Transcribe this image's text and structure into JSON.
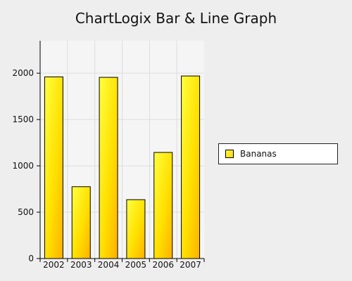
{
  "chart_data": {
    "type": "bar",
    "title": "ChartLogix Bar & Line Graph",
    "categories": [
      "2002",
      "2003",
      "2004",
      "2005",
      "2006",
      "2007"
    ],
    "series": [
      {
        "name": "Bananas",
        "values": [
          1960,
          775,
          1955,
          635,
          1145,
          1970
        ],
        "color": "#ffe000"
      }
    ],
    "yticks": [
      "0",
      "500",
      "1000",
      "1500",
      "2000"
    ],
    "ylim": [
      0,
      2350
    ],
    "xlabel": "",
    "ylabel": "",
    "grid": true,
    "legend_position": "right"
  }
}
